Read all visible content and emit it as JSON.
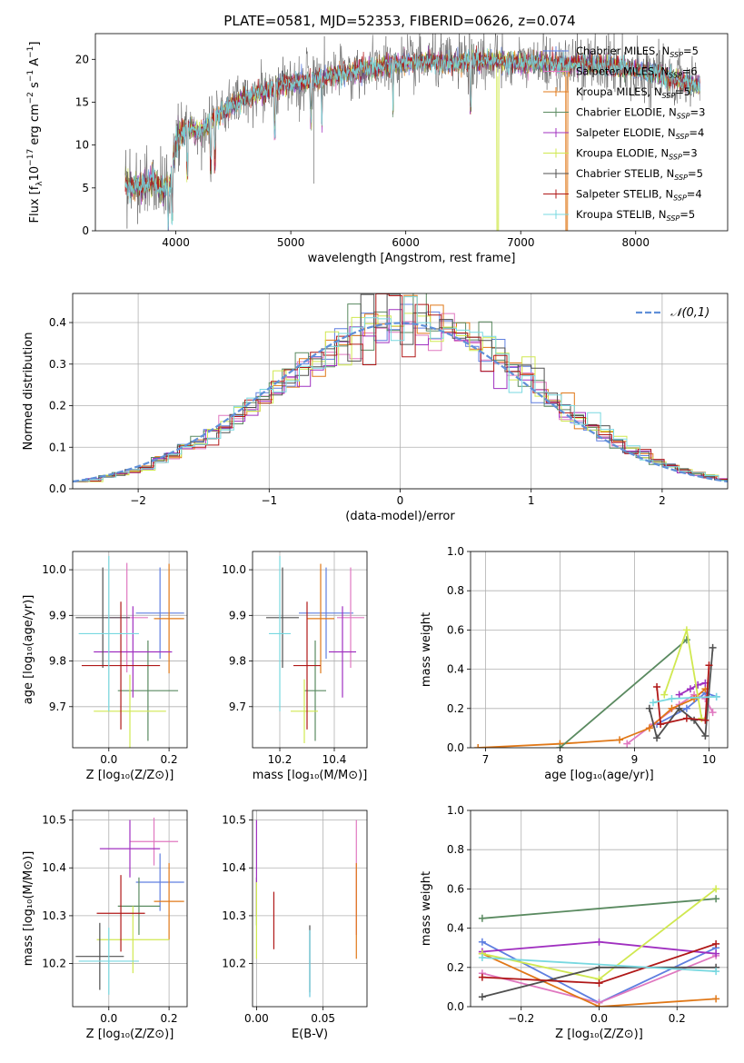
{
  "colors": {
    "Chabrier MILES": "#5f7fe0",
    "Salpeter MILES": "#e078c0",
    "Kroupa MILES": "#e07818",
    "Chabrier ELODIE": "#5a8a60",
    "Salpeter ELODIE": "#a030c0",
    "Kroupa ELODIE": "#d0e850",
    "Chabrier STELIB": "#505050",
    "Salpeter STELIB": "#b01818",
    "Kroupa STELIB": "#78d8e0",
    "normal": "#6090d8"
  },
  "chart_data": [
    {
      "id": "spectrum",
      "type": "line",
      "title": "PLATE=0581, MJD=52353, FIBERID=0626, z=0.074",
      "xlabel": "wavelength [Angstrom, rest frame]",
      "ylabel_main": "Flux [f",
      "ylabel_sub": "λ",
      "ylabel_rest": "10",
      "ylabel_exp": "−17",
      "ylabel_tail": " erg cm",
      "ylabel_exp2": "−2",
      "ylabel_tail2": " s",
      "ylabel_exp3": "−1",
      "ylabel_tail3": " A",
      "ylabel_exp4": "−1",
      "ylabel_end": "]",
      "xlim": [
        3300,
        8800
      ],
      "ylim": [
        0,
        23
      ],
      "xticks": [
        4000,
        5000,
        6000,
        7000,
        8000
      ],
      "yticks": [
        0,
        5,
        10,
        15,
        20
      ],
      "legend_position": "right",
      "series": [
        {
          "name": "Chabrier MILES",
          "nssp": "5"
        },
        {
          "name": "Salpeter MILES",
          "nssp": "6"
        },
        {
          "name": "Kroupa MILES",
          "nssp": "5"
        },
        {
          "name": "Chabrier ELODIE",
          "nssp": "3"
        },
        {
          "name": "Salpeter ELODIE",
          "nssp": "4"
        },
        {
          "name": "Kroupa ELODIE",
          "nssp": "3"
        },
        {
          "name": "Chabrier STELIB",
          "nssp": "5"
        },
        {
          "name": "Salpeter STELIB",
          "nssp": "4"
        },
        {
          "name": "Kroupa STELIB",
          "nssp": "5"
        }
      ],
      "legend_sub": "SSP",
      "continuum": [
        [
          3560,
          5.5
        ],
        [
          3700,
          5.2
        ],
        [
          3800,
          6.0
        ],
        [
          3900,
          4.8
        ],
        [
          3950,
          5.5
        ],
        [
          4000,
          10.5
        ],
        [
          4100,
          12.0
        ],
        [
          4200,
          11.5
        ],
        [
          4400,
          13.8
        ],
        [
          4600,
          15.5
        ],
        [
          4800,
          16.5
        ],
        [
          5000,
          17.3
        ],
        [
          5200,
          17.5
        ],
        [
          5400,
          18.2
        ],
        [
          5600,
          18.7
        ],
        [
          5800,
          19.2
        ],
        [
          6000,
          19.5
        ],
        [
          6200,
          19.8
        ],
        [
          6400,
          19.6
        ],
        [
          6600,
          19.8
        ],
        [
          6800,
          19.8
        ],
        [
          7000,
          19.6
        ],
        [
          7200,
          19.6
        ],
        [
          7400,
          19.4
        ],
        [
          7600,
          19.5
        ],
        [
          7800,
          19.2
        ],
        [
          8000,
          18.8
        ],
        [
          8200,
          18.2
        ],
        [
          8400,
          17.4
        ],
        [
          8550,
          16.8
        ]
      ]
    },
    {
      "id": "residuals",
      "type": "histogram",
      "xlabel": "(data-model)/error",
      "ylabel": "Normed distribution",
      "xlim": [
        -2.5,
        2.5
      ],
      "ylim": [
        0,
        0.47
      ],
      "xticks": [
        -2,
        -1,
        0,
        1,
        2
      ],
      "yticks": [
        0.0,
        0.1,
        0.2,
        0.3,
        0.4
      ],
      "legend": "𝒩(0,1)",
      "legend_position": "top-right",
      "normal_mean": 0,
      "normal_sigma": 1
    },
    {
      "id": "age-vs-Z",
      "type": "errorbar",
      "xlabel": "Z [log₁₀(Z/Z⊙)]",
      "ylabel": "age  [log₁₀(age/yr)]",
      "xlim": [
        -0.12,
        0.26
      ],
      "ylim": [
        9.61,
        10.04
      ],
      "xticks": [
        0.0,
        0.2
      ],
      "yticks": [
        9.7,
        9.8,
        9.9,
        10.0
      ],
      "points": [
        {
          "series": "Chabrier MILES",
          "x": 0.17,
          "xerr": 0.08,
          "y": 9.905,
          "yerr": 0.1
        },
        {
          "series": "Salpeter MILES",
          "x": 0.06,
          "xerr": 0.07,
          "y": 9.895,
          "yerr": 0.12
        },
        {
          "series": "Kroupa MILES",
          "x": 0.2,
          "xerr": 0.05,
          "y": 9.893,
          "yerr": 0.12
        },
        {
          "series": "Chabrier ELODIE",
          "x": 0.13,
          "xerr": 0.1,
          "y": 9.735,
          "yerr": 0.11
        },
        {
          "series": "Salpeter ELODIE",
          "x": 0.08,
          "xerr": 0.13,
          "y": 9.82,
          "yerr": 0.1
        },
        {
          "series": "Kroupa ELODIE",
          "x": 0.07,
          "xerr": 0.12,
          "y": 9.69,
          "yerr": 0.08
        },
        {
          "series": "Chabrier STELIB",
          "x": -0.02,
          "xerr": 0.09,
          "y": 9.895,
          "yerr": 0.11
        },
        {
          "series": "Salpeter STELIB",
          "x": 0.04,
          "xerr": 0.13,
          "y": 9.79,
          "yerr": 0.14
        },
        {
          "series": "Kroupa STELIB",
          "x": 0.0,
          "xerr": 0.1,
          "y": 9.86,
          "yerr": 0.17
        }
      ]
    },
    {
      "id": "age-vs-mass",
      "type": "errorbar",
      "xlabel": "mass [log₁₀(M/M⊙)]",
      "xlim": [
        10.1,
        10.52
      ],
      "ylim": [
        9.61,
        10.04
      ],
      "xticks": [
        10.2,
        10.4
      ],
      "yticks": [
        9.7,
        9.8,
        9.9,
        10.0
      ],
      "points": [
        {
          "series": "Chabrier MILES",
          "x": 10.37,
          "xerr": 0.1,
          "y": 9.905,
          "yerr": 0.1
        },
        {
          "series": "Salpeter MILES",
          "x": 10.46,
          "xerr": 0.05,
          "y": 9.895,
          "yerr": 0.11
        },
        {
          "series": "Kroupa MILES",
          "x": 10.35,
          "xerr": 0.05,
          "y": 9.893,
          "yerr": 0.12
        },
        {
          "series": "Chabrier ELODIE",
          "x": 10.33,
          "xerr": 0.04,
          "y": 9.735,
          "yerr": 0.11
        },
        {
          "series": "Salpeter ELODIE",
          "x": 10.43,
          "xerr": 0.05,
          "y": 9.82,
          "yerr": 0.1
        },
        {
          "series": "Kroupa ELODIE",
          "x": 10.29,
          "xerr": 0.05,
          "y": 9.69,
          "yerr": 0.07
        },
        {
          "series": "Chabrier STELIB",
          "x": 10.21,
          "xerr": 0.06,
          "y": 9.895,
          "yerr": 0.11
        },
        {
          "series": "Salpeter STELIB",
          "x": 10.3,
          "xerr": 0.05,
          "y": 9.79,
          "yerr": 0.14
        },
        {
          "series": "Kroupa STELIB",
          "x": 10.2,
          "xerr": 0.04,
          "y": 9.86,
          "yerr": 0.17
        }
      ]
    },
    {
      "id": "weight-vs-age",
      "type": "line",
      "xlabel": "age  [log₁₀(age/yr)]",
      "ylabel": "mass weight",
      "xlim": [
        6.8,
        10.25
      ],
      "ylim": [
        0,
        1.0
      ],
      "xticks": [
        7,
        8,
        9,
        10
      ],
      "yticks": [
        0.0,
        0.2,
        0.4,
        0.6,
        0.8,
        1.0
      ],
      "series": [
        {
          "name": "Chabrier MILES",
          "x": [
            9.3,
            9.7,
            9.95,
            10.1
          ],
          "y": [
            0.12,
            0.2,
            0.28,
            0.26
          ]
        },
        {
          "name": "Salpeter MILES",
          "x": [
            8.9,
            9.25,
            9.6,
            9.8,
            9.95,
            10.05
          ],
          "y": [
            0.02,
            0.12,
            0.22,
            0.27,
            0.25,
            0.18
          ]
        },
        {
          "name": "Kroupa MILES",
          "x": [
            6.9,
            8.0,
            8.8,
            9.2,
            9.5,
            9.8,
            9.95
          ],
          "y": [
            0.0,
            0.02,
            0.04,
            0.1,
            0.2,
            0.25,
            0.3
          ]
        },
        {
          "name": "Chabrier ELODIE",
          "x": [
            8.0,
            9.7
          ],
          "y": [
            0.0,
            0.55
          ]
        },
        {
          "name": "Salpeter ELODIE",
          "x": [
            9.6,
            9.75,
            9.85,
            9.95
          ],
          "y": [
            0.27,
            0.3,
            0.32,
            0.33
          ]
        },
        {
          "name": "Kroupa ELODIE",
          "x": [
            9.4,
            9.7,
            9.9
          ],
          "y": [
            0.27,
            0.6,
            0.15
          ]
        },
        {
          "name": "Chabrier STELIB",
          "x": [
            9.2,
            9.3,
            9.6,
            9.8,
            9.95,
            10.05
          ],
          "y": [
            0.2,
            0.05,
            0.2,
            0.14,
            0.06,
            0.51
          ]
        },
        {
          "name": "Salpeter STELIB",
          "x": [
            9.3,
            9.35,
            9.7,
            9.95,
            10.0
          ],
          "y": [
            0.31,
            0.12,
            0.15,
            0.14,
            0.42
          ]
        },
        {
          "name": "Kroupa STELIB",
          "x": [
            9.25,
            9.5,
            10.1
          ],
          "y": [
            0.23,
            0.25,
            0.26
          ]
        }
      ]
    },
    {
      "id": "mass-vs-Z",
      "type": "errorbar",
      "xlabel": "Z [log₁₀(Z/Z⊙)]",
      "ylabel": "mass [log₁₀(M/M⊙)]",
      "xlim": [
        -0.12,
        0.26
      ],
      "ylim": [
        10.11,
        10.52
      ],
      "xticks": [
        0.0,
        0.2
      ],
      "yticks": [
        10.2,
        10.3,
        10.4,
        10.5
      ],
      "points": [
        {
          "series": "Chabrier MILES",
          "x": 0.17,
          "xerr": 0.08,
          "y": 10.37,
          "yerr": 0.06
        },
        {
          "series": "Salpeter MILES",
          "x": 0.15,
          "xerr": 0.08,
          "y": 10.455,
          "yerr": 0.05
        },
        {
          "series": "Kroupa MILES",
          "x": 0.2,
          "xerr": 0.05,
          "y": 10.33,
          "yerr": 0.08
        },
        {
          "series": "Chabrier ELODIE",
          "x": 0.1,
          "xerr": 0.07,
          "y": 10.32,
          "yerr": 0.06
        },
        {
          "series": "Salpeter ELODIE",
          "x": 0.07,
          "xerr": 0.1,
          "y": 10.44,
          "yerr": 0.06
        },
        {
          "series": "Kroupa ELODIE",
          "x": 0.08,
          "xerr": 0.12,
          "y": 10.25,
          "yerr": 0.07
        },
        {
          "series": "Chabrier STELIB",
          "x": -0.03,
          "xerr": 0.08,
          "y": 10.215,
          "yerr": 0.07
        },
        {
          "series": "Salpeter STELIB",
          "x": 0.04,
          "xerr": 0.08,
          "y": 10.305,
          "yerr": 0.08
        },
        {
          "series": "Kroupa STELIB",
          "x": 0.0,
          "xerr": 0.1,
          "y": 10.205,
          "yerr": 0.07
        }
      ]
    },
    {
      "id": "mass-vs-ebv",
      "type": "errorbar",
      "xlabel": "E(B-V)",
      "xlim": [
        -0.003,
        0.083
      ],
      "ylim": [
        10.11,
        10.52
      ],
      "xticks": [
        0.0,
        0.05
      ],
      "yticks": [
        10.2,
        10.3,
        10.4,
        10.5
      ],
      "points": [
        {
          "series": "Chabrier MILES",
          "x": 0.04,
          "xerr": 0,
          "y": 10.2,
          "yerr": 0.07
        },
        {
          "series": "Salpeter MILES",
          "x": 0.075,
          "xerr": 0,
          "y": 10.38,
          "yerr": 0.12
        },
        {
          "series": "Kroupa MILES",
          "x": 0.075,
          "xerr": 0,
          "y": 10.31,
          "yerr": 0.1
        },
        {
          "series": "Chabrier ELODIE",
          "x": 0.0,
          "xerr": 0,
          "y": 10.33,
          "yerr": 0.05
        },
        {
          "series": "Salpeter ELODIE",
          "x": 0.0,
          "xerr": 0,
          "y": 10.4,
          "yerr": 0.1
        },
        {
          "series": "Kroupa ELODIE",
          "x": 0.0,
          "xerr": 0,
          "y": 10.29,
          "yerr": 0.08
        },
        {
          "series": "Chabrier STELIB",
          "x": 0.04,
          "xerr": 0,
          "y": 10.21,
          "yerr": 0.07
        },
        {
          "series": "Salpeter STELIB",
          "x": 0.013,
          "xerr": 0,
          "y": 10.29,
          "yerr": 0.06
        },
        {
          "series": "Kroupa STELIB",
          "x": 0.04,
          "xerr": 0,
          "y": 10.2,
          "yerr": 0.07
        }
      ]
    },
    {
      "id": "weight-vs-Z",
      "type": "line",
      "xlabel": "Z [log₁₀(Z/Z⊙)]",
      "ylabel": "mass weight",
      "xlim": [
        -0.33,
        0.33
      ],
      "ylim": [
        0,
        1.0
      ],
      "xticks": [
        -0.2,
        0.0,
        0.2
      ],
      "yticks": [
        0.0,
        0.2,
        0.4,
        0.6,
        0.8,
        1.0
      ],
      "series": [
        {
          "name": "Chabrier MILES",
          "x": [
            -0.3,
            0.0,
            0.3
          ],
          "y": [
            0.33,
            0.02,
            0.3
          ]
        },
        {
          "name": "Salpeter MILES",
          "x": [
            -0.3,
            0.0,
            0.3
          ],
          "y": [
            0.17,
            0.02,
            0.26
          ]
        },
        {
          "name": "Kroupa MILES",
          "x": [
            -0.3,
            0.0,
            0.3
          ],
          "y": [
            0.27,
            0.0,
            0.04
          ]
        },
        {
          "name": "Chabrier ELODIE",
          "x": [
            -0.3,
            0.3
          ],
          "y": [
            0.45,
            0.55
          ]
        },
        {
          "name": "Salpeter ELODIE",
          "x": [
            -0.3,
            0.0,
            0.3
          ],
          "y": [
            0.28,
            0.33,
            0.27
          ]
        },
        {
          "name": "Kroupa ELODIE",
          "x": [
            -0.3,
            0.0,
            0.3
          ],
          "y": [
            0.27,
            0.14,
            0.6
          ]
        },
        {
          "name": "Chabrier STELIB",
          "x": [
            -0.3,
            0.0,
            0.3
          ],
          "y": [
            0.05,
            0.2,
            0.2
          ]
        },
        {
          "name": "Salpeter STELIB",
          "x": [
            -0.3,
            0.0,
            0.3
          ],
          "y": [
            0.15,
            0.12,
            0.32
          ]
        },
        {
          "name": "Kroupa STELIB",
          "x": [
            -0.3,
            0.3
          ],
          "y": [
            0.25,
            0.18
          ]
        }
      ]
    }
  ]
}
